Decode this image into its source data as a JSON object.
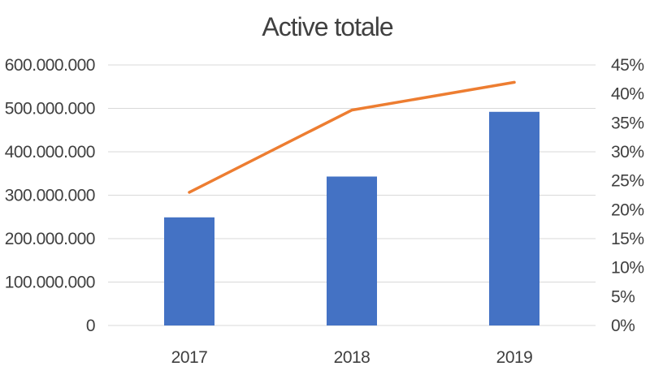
{
  "chart_data": {
    "type": "bar",
    "title": "Active totale",
    "categories": [
      "2017",
      "2018",
      "2019"
    ],
    "series": [
      {
        "type": "bar",
        "axis": "left",
        "color": "#4472c4",
        "values": [
          249000000,
          343000000,
          492000000
        ]
      },
      {
        "type": "line",
        "axis": "right",
        "color": "#ed7d31",
        "values": [
          0.23,
          0.372,
          0.42
        ]
      }
    ],
    "y_left": {
      "min": 0,
      "max": 600000000,
      "ticks": [
        "0",
        "100.000.000",
        "200.000.000",
        "300.000.000",
        "400.000.000",
        "500.000.000",
        "600.000.000"
      ]
    },
    "y_right": {
      "min": 0,
      "max": 0.45,
      "ticks": [
        "0%",
        "5%",
        "10%",
        "15%",
        "20%",
        "25%",
        "30%",
        "35%",
        "40%",
        "45%"
      ]
    },
    "grid": true,
    "legend": "none"
  }
}
